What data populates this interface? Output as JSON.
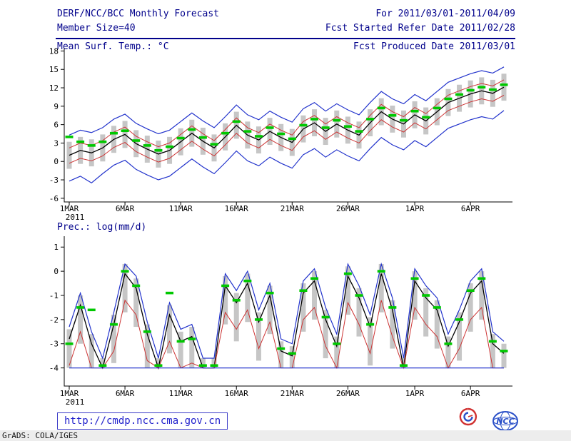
{
  "header": {
    "title": "DERF/NCC/BCC Monthly Forecast",
    "for_range": "For 2011/03/01-2011/04/09",
    "member_size": "Member Size=40",
    "refer_date": "Fcst Started Refer Date 2011/02/28",
    "produced_date": "Fcst Produced Date 2011/03/01"
  },
  "footer": {
    "url": "http://cmdp.ncc.cma.gov.cn",
    "credit": "GrADS: COLA/IGES",
    "logo_bcc": "BCC",
    "logo_ncc": "NCC"
  },
  "colors": {
    "header_text": "#00008b",
    "axis": "#000000",
    "bar": "#c6c6c6",
    "blue": "#2233cc",
    "red": "#cc3333",
    "black": "#000000",
    "green": "#00c800"
  },
  "chart_data": [
    {
      "type": "line",
      "title": "Mean Surf. Temp.: °C",
      "n_days": 40,
      "x_start": "2011-03-01",
      "x_end": "2011-04-09",
      "x_sub_label": "2011",
      "x_ticks": [
        {
          "label": "1MAR",
          "day": 0
        },
        {
          "label": "6MAR",
          "day": 5
        },
        {
          "label": "11MAR",
          "day": 10
        },
        {
          "label": "16MAR",
          "day": 15
        },
        {
          "label": "21MAR",
          "day": 20
        },
        {
          "label": "26MAR",
          "day": 25
        },
        {
          "label": "1APR",
          "day": 31
        },
        {
          "label": "6APR",
          "day": 36
        }
      ],
      "ylim": [
        -6.6,
        18.4
      ],
      "y_ticks": [
        -6,
        -3,
        0,
        3,
        6,
        9,
        12,
        15,
        18
      ],
      "series": [
        {
          "name": "ensemble-max",
          "color": "#2233cc",
          "width": 1.2,
          "values": [
            4.3,
            5.1,
            4.7,
            5.5,
            6.9,
            7.7,
            6.2,
            5.3,
            4.5,
            5.1,
            6.5,
            7.9,
            6.6,
            5.5,
            7.3,
            9.2,
            7.6,
            6.8,
            8.2,
            7.2,
            6.4,
            8.6,
            9.6,
            8.2,
            9.4,
            8.4,
            7.6,
            9.6,
            11.4,
            10.2,
            9.4,
            10.9,
            9.9,
            11.4,
            12.9,
            13.6,
            14.3,
            14.8,
            14.4,
            15.4
          ]
        },
        {
          "name": "upper-quartile",
          "color": "#cc3333",
          "width": 1,
          "values": [
            2.2,
            3.0,
            2.6,
            3.4,
            4.8,
            5.6,
            4.1,
            3.2,
            2.4,
            3.0,
            4.4,
            5.8,
            4.5,
            3.4,
            5.2,
            7.1,
            5.5,
            4.7,
            6.1,
            5.1,
            4.3,
            6.5,
            7.5,
            6.1,
            7.3,
            6.3,
            5.5,
            7.5,
            9.3,
            8.1,
            7.3,
            8.8,
            7.8,
            9.3,
            10.8,
            11.5,
            12.2,
            12.7,
            12.3,
            13.3
          ]
        },
        {
          "name": "ensemble-median",
          "color": "#000000",
          "width": 1.3,
          "values": [
            1.0,
            1.8,
            1.4,
            2.2,
            3.6,
            4.4,
            2.9,
            2.0,
            1.2,
            1.8,
            3.2,
            4.6,
            3.3,
            2.2,
            4.0,
            5.9,
            4.3,
            3.5,
            4.9,
            3.9,
            3.1,
            5.3,
            6.3,
            4.9,
            6.1,
            5.1,
            4.3,
            6.3,
            8.1,
            6.9,
            6.1,
            7.6,
            6.6,
            8.1,
            9.6,
            10.3,
            11.0,
            11.5,
            11.1,
            12.1
          ]
        },
        {
          "name": "lower-quartile",
          "color": "#cc3333",
          "width": 1,
          "values": [
            -0.3,
            0.5,
            0.1,
            0.9,
            2.3,
            3.1,
            1.6,
            0.7,
            -0.1,
            0.5,
            1.9,
            3.3,
            2.0,
            0.9,
            2.7,
            4.6,
            3.0,
            2.2,
            3.6,
            2.6,
            1.8,
            4.0,
            5.0,
            3.6,
            4.8,
            3.8,
            3.0,
            5.0,
            6.8,
            5.6,
            4.8,
            6.3,
            5.3,
            6.8,
            8.3,
            9.0,
            9.7,
            10.2,
            9.8,
            10.8
          ]
        },
        {
          "name": "ensemble-min",
          "color": "#2233cc",
          "width": 1.2,
          "values": [
            -3.2,
            -2.4,
            -3.5,
            -2.0,
            -0.6,
            0.2,
            -1.3,
            -2.2,
            -3.0,
            -2.4,
            -1.0,
            0.4,
            -0.9,
            -2.0,
            -0.2,
            1.7,
            0.1,
            -0.7,
            0.7,
            -0.3,
            -1.1,
            1.1,
            2.1,
            0.7,
            1.9,
            0.9,
            0.1,
            2.1,
            3.9,
            2.7,
            1.9,
            3.4,
            2.4,
            3.9,
            5.4,
            6.1,
            6.8,
            7.3,
            6.9,
            8.3
          ]
        }
      ],
      "obs": {
        "name": "ensemble-mean-mark",
        "color": "#00c800",
        "values": [
          4.0,
          3.2,
          2.6,
          3.2,
          4.6,
          5.0,
          3.4,
          2.6,
          1.8,
          2.4,
          3.8,
          5.2,
          3.9,
          2.8,
          4.6,
          6.5,
          4.9,
          4.1,
          5.5,
          4.5,
          3.7,
          5.9,
          6.9,
          5.5,
          6.7,
          5.7,
          4.9,
          6.9,
          8.7,
          7.5,
          6.7,
          8.2,
          7.2,
          8.7,
          10.2,
          10.9,
          11.6,
          12.1,
          11.7,
          12.5
        ]
      },
      "bars": {
        "color": "#c6c6c6",
        "lo": [
          -1.2,
          -0.4,
          -0.8,
          0.0,
          1.4,
          2.2,
          0.7,
          -0.2,
          -1.0,
          -0.4,
          1.0,
          2.4,
          1.1,
          0.0,
          1.8,
          3.7,
          2.1,
          1.3,
          2.7,
          1.7,
          0.9,
          3.1,
          4.1,
          2.7,
          3.9,
          2.9,
          2.1,
          4.1,
          5.9,
          4.7,
          3.9,
          5.4,
          4.4,
          5.9,
          7.4,
          8.1,
          8.8,
          9.3,
          8.9,
          9.9
        ],
        "hi": [
          3.2,
          4.0,
          3.6,
          4.4,
          5.8,
          6.6,
          5.1,
          4.2,
          3.4,
          4.0,
          5.4,
          6.8,
          5.5,
          4.4,
          6.2,
          8.1,
          6.5,
          5.7,
          7.1,
          6.1,
          5.3,
          7.5,
          8.5,
          7.1,
          8.3,
          7.3,
          6.5,
          8.5,
          10.3,
          9.1,
          8.3,
          9.8,
          8.8,
          10.3,
          11.8,
          12.5,
          13.2,
          13.7,
          13.3,
          14.3
        ]
      }
    },
    {
      "type": "line",
      "title": "Prec.: log(mm/d)",
      "n_days": 40,
      "x_start": "2011-03-01",
      "x_end": "2011-04-09",
      "x_sub_label": "2011",
      "x_ticks": [
        {
          "label": "1MAR",
          "day": 0
        },
        {
          "label": "6MAR",
          "day": 5
        },
        {
          "label": "11MAR",
          "day": 10
        },
        {
          "label": "16MAR",
          "day": 15
        },
        {
          "label": "21MAR",
          "day": 20
        },
        {
          "label": "26MAR",
          "day": 25
        },
        {
          "label": "1APR",
          "day": 31
        },
        {
          "label": "6APR",
          "day": 36
        }
      ],
      "ylim": [
        -4.75,
        1.45
      ],
      "y_ticks": [
        -4,
        -3,
        -2,
        -1,
        0,
        1
      ],
      "series": [
        {
          "name": "ensemble-max",
          "color": "#2233cc",
          "width": 1.2,
          "values": [
            -2.3,
            -0.9,
            -2.5,
            -3.6,
            -1.7,
            0.3,
            -0.2,
            -2.1,
            -3.6,
            -1.3,
            -2.4,
            -2.2,
            -3.6,
            -3.6,
            -0.1,
            -0.8,
            0.0,
            -1.6,
            -0.5,
            -2.8,
            -3.0,
            -0.4,
            0.1,
            -1.5,
            -2.6,
            0.3,
            -0.6,
            -1.8,
            0.3,
            -1.1,
            -3.6,
            0.1,
            -0.6,
            -1.1,
            -2.6,
            -1.6,
            -0.4,
            0.1,
            -2.5,
            -2.9
          ]
        },
        {
          "name": "ensemble-median",
          "color": "#000000",
          "width": 1.3,
          "values": [
            -2.8,
            -1.4,
            -3.0,
            -4.0,
            -2.2,
            -0.1,
            -0.7,
            -2.6,
            -4.0,
            -1.8,
            -2.9,
            -2.7,
            -4.0,
            -4.0,
            -0.6,
            -1.3,
            -0.5,
            -2.1,
            -1.0,
            -3.3,
            -3.5,
            -0.9,
            -0.4,
            -2.0,
            -3.1,
            -0.2,
            -1.1,
            -2.3,
            -0.1,
            -1.6,
            -4.0,
            -0.4,
            -1.1,
            -1.6,
            -3.1,
            -2.1,
            -0.9,
            -0.4,
            -3.0,
            -3.4
          ]
        },
        {
          "name": "lower-quartile",
          "color": "#cc3333",
          "width": 1,
          "values": [
            -3.9,
            -2.5,
            -4.0,
            -4.0,
            -3.3,
            -1.2,
            -1.8,
            -3.7,
            -4.0,
            -2.9,
            -4.0,
            -3.8,
            -4.0,
            -4.0,
            -1.7,
            -2.4,
            -1.6,
            -3.2,
            -2.1,
            -4.0,
            -4.0,
            -2.0,
            -1.5,
            -3.1,
            -4.0,
            -1.3,
            -2.2,
            -3.4,
            -1.2,
            -2.7,
            -4.0,
            -1.5,
            -2.2,
            -2.7,
            -4.0,
            -3.2,
            -2.0,
            -1.5,
            -4.0,
            -4.0
          ]
        },
        {
          "name": "ensemble-min",
          "color": "#2233cc",
          "width": 1.2,
          "values": [
            -4.0,
            -4.0,
            -4.0,
            -4.0,
            -4.0,
            -4.0,
            -4.0,
            -4.0,
            -4.0,
            -4.0,
            -4.0,
            -4.0,
            -4.0,
            -4.0,
            -4.0,
            -4.0,
            -4.0,
            -4.0,
            -4.0,
            -4.0,
            -4.0,
            -4.0,
            -4.0,
            -4.0,
            -4.0,
            -4.0,
            -4.0,
            -4.0,
            -4.0,
            -4.0,
            -4.0,
            -4.0,
            -4.0,
            -4.0,
            -4.0,
            -4.0,
            -4.0,
            -4.0,
            -4.0,
            -4.0
          ]
        }
      ],
      "obs": {
        "name": "ensemble-mean-mark",
        "color": "#00c800",
        "values": [
          -3.0,
          -1.5,
          -1.6,
          -3.9,
          -2.2,
          0.0,
          -0.6,
          -2.5,
          -3.9,
          -0.9,
          -2.9,
          -2.8,
          -3.9,
          -3.9,
          -0.6,
          -1.2,
          -0.4,
          -2.0,
          -0.9,
          -3.2,
          -3.4,
          -0.8,
          -0.3,
          -1.9,
          -3.0,
          -0.1,
          -1.0,
          -2.2,
          0.0,
          -1.5,
          -3.9,
          -0.3,
          -1.0,
          -1.5,
          -3.0,
          -2.0,
          -0.8,
          -0.3,
          -2.9,
          -3.3
        ]
      },
      "bars": {
        "color": "#c6c6c6",
        "lo": [
          -4.0,
          -3.0,
          -4.0,
          -4.0,
          -3.8,
          -1.7,
          -2.3,
          -4.0,
          -4.0,
          -3.4,
          -4.0,
          -4.0,
          -4.0,
          -4.0,
          -2.2,
          -2.9,
          -2.1,
          -3.7,
          -2.6,
          -4.0,
          -4.0,
          -2.5,
          -2.0,
          -3.6,
          -4.0,
          -1.8,
          -2.7,
          -3.9,
          -1.7,
          -3.2,
          -4.0,
          -2.0,
          -2.7,
          -3.2,
          -4.0,
          -3.7,
          -2.5,
          -2.0,
          -4.0,
          -4.0
        ],
        "hi": [
          -2.4,
          -1.0,
          -2.6,
          -3.6,
          -1.8,
          0.3,
          -0.3,
          -2.2,
          -3.6,
          -1.4,
          -2.5,
          -2.3,
          -3.6,
          -3.6,
          -0.2,
          -0.9,
          -0.1,
          -1.7,
          -0.6,
          -2.9,
          -3.1,
          -0.5,
          0.0,
          -1.6,
          -2.7,
          0.2,
          -0.7,
          -1.9,
          0.3,
          -1.2,
          -3.6,
          0.0,
          -0.7,
          -1.2,
          -2.7,
          -1.7,
          -0.5,
          0.0,
          -2.6,
          -3.0
        ]
      }
    }
  ]
}
